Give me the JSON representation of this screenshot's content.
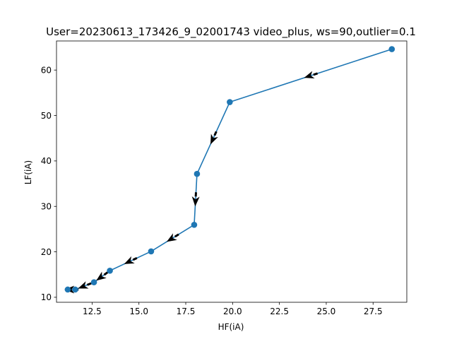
{
  "chart_data": {
    "type": "line",
    "title": "User=20230613_173426_9_02001743 video_plus, ws=90,outlier=0.1",
    "xlabel": "HF(iA)",
    "ylabel": "LF(iA)",
    "xlim": [
      10.6,
      29.3
    ],
    "ylim": [
      8.9,
      66.4
    ],
    "x_ticks": [
      12.5,
      15.0,
      17.5,
      20.0,
      22.5,
      25.0,
      27.5
    ],
    "x_tick_labels": [
      "12.5",
      "15.0",
      "17.5",
      "20.0",
      "22.5",
      "25.0",
      "27.5"
    ],
    "y_ticks": [
      10,
      20,
      30,
      40,
      50,
      60
    ],
    "y_tick_labels": [
      "10",
      "20",
      "30",
      "40",
      "50",
      "60"
    ],
    "grid": false,
    "legend": false,
    "series": [
      {
        "color": "#1f77b4",
        "marker": "circle",
        "x": [
          28.5,
          19.85,
          18.1,
          17.95,
          15.65,
          13.45,
          12.6,
          11.6,
          11.2
        ],
        "y": [
          64.6,
          52.95,
          37.15,
          25.95,
          20.1,
          15.85,
          13.3,
          11.7,
          11.7
        ]
      }
    ],
    "arrows": {
      "color": "#000000",
      "direction": "from each point toward the next point (decreasing HF and LF)"
    }
  }
}
